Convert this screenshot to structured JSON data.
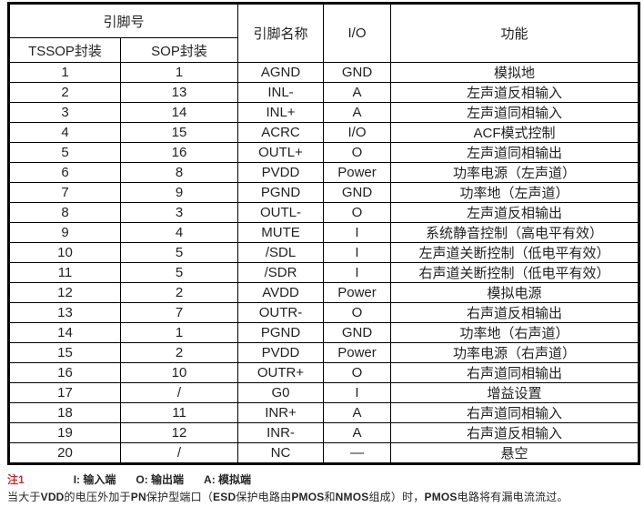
{
  "table": {
    "header": {
      "pin_number_group": "引脚号",
      "col_tssop": "TSSOP封装",
      "col_sop": "SOP封装",
      "col_pin_name": "引脚名称",
      "col_io": "I/O",
      "col_function": "功能"
    },
    "rows": [
      {
        "tssop": "1",
        "sop": "1",
        "name": "AGND",
        "io": "GND",
        "func": "模拟地"
      },
      {
        "tssop": "2",
        "sop": "13",
        "name": "INL-",
        "io": "A",
        "func": "左声道反相输入"
      },
      {
        "tssop": "3",
        "sop": "14",
        "name": "INL+",
        "io": "A",
        "func": "左声道同相输入"
      },
      {
        "tssop": "4",
        "sop": "15",
        "name": "ACRC",
        "io": "I/O",
        "func": "ACF模式控制"
      },
      {
        "tssop": "5",
        "sop": "16",
        "name": "OUTL+",
        "io": "O",
        "func": "左声道同相输出"
      },
      {
        "tssop": "6",
        "sop": "8",
        "name": "PVDD",
        "io": "Power",
        "func": "功率电源（左声道）"
      },
      {
        "tssop": "7",
        "sop": "9",
        "name": "PGND",
        "io": "GND",
        "func": "功率地（左声道）"
      },
      {
        "tssop": "8",
        "sop": "3",
        "name": "OUTL-",
        "io": "O",
        "func": "左声道反相输出"
      },
      {
        "tssop": "9",
        "sop": "4",
        "name": "MUTE",
        "io": "I",
        "func": "系统静音控制（高电平有效）"
      },
      {
        "tssop": "10",
        "sop": "5",
        "name": "/SDL",
        "io": "I",
        "func": "左声道关断控制（低电平有效）"
      },
      {
        "tssop": "11",
        "sop": "5",
        "name": "/SDR",
        "io": "I",
        "func": "右声道关断控制（低电平有效）"
      },
      {
        "tssop": "12",
        "sop": "2",
        "name": "AVDD",
        "io": "Power",
        "func": "模拟电源"
      },
      {
        "tssop": "13",
        "sop": "7",
        "name": "OUTR-",
        "io": "O",
        "func": "右声道反相输出"
      },
      {
        "tssop": "14",
        "sop": "1",
        "name": "PGND",
        "io": "GND",
        "func": "功率地（右声道）"
      },
      {
        "tssop": "15",
        "sop": "2",
        "name": "PVDD",
        "io": "Power",
        "func": "功率电源（右声道）"
      },
      {
        "tssop": "16",
        "sop": "10",
        "name": "OUTR+",
        "io": "O",
        "func": "右声道同相输出"
      },
      {
        "tssop": "17",
        "sop": "/",
        "name": "G0",
        "io": "I",
        "func": "增益设置"
      },
      {
        "tssop": "18",
        "sop": "11",
        "name": "INR+",
        "io": "A",
        "func": "右声道同相输入"
      },
      {
        "tssop": "19",
        "sop": "12",
        "name": "INR-",
        "io": "A",
        "func": "右声道反相输入"
      },
      {
        "tssop": "20",
        "sop": "/",
        "name": "NC",
        "io": "—",
        "func": "悬空"
      }
    ]
  },
  "notes": {
    "note1_label": "注1",
    "note1_items": [
      "I: 输入端",
      "O: 输出端",
      "A: 模拟端"
    ],
    "note2_segments": [
      {
        "text": "当大于",
        "bold": false
      },
      {
        "text": "VDD",
        "bold": true
      },
      {
        "text": "的电压外加于",
        "bold": false
      },
      {
        "text": "PN",
        "bold": true
      },
      {
        "text": "保护型端口（",
        "bold": false
      },
      {
        "text": "ESD",
        "bold": true
      },
      {
        "text": "保护电路由",
        "bold": false
      },
      {
        "text": "PMOS",
        "bold": true
      },
      {
        "text": "和",
        "bold": false
      },
      {
        "text": "NMOS",
        "bold": true
      },
      {
        "text": "组成）时，",
        "bold": false
      },
      {
        "text": "PMOS",
        "bold": true
      },
      {
        "text": "电路将有漏电流流过。",
        "bold": false
      }
    ]
  },
  "colors": {
    "border": "#000000",
    "text": "#222222",
    "note_label_red": "#bb3333",
    "background": "#ffffff"
  }
}
